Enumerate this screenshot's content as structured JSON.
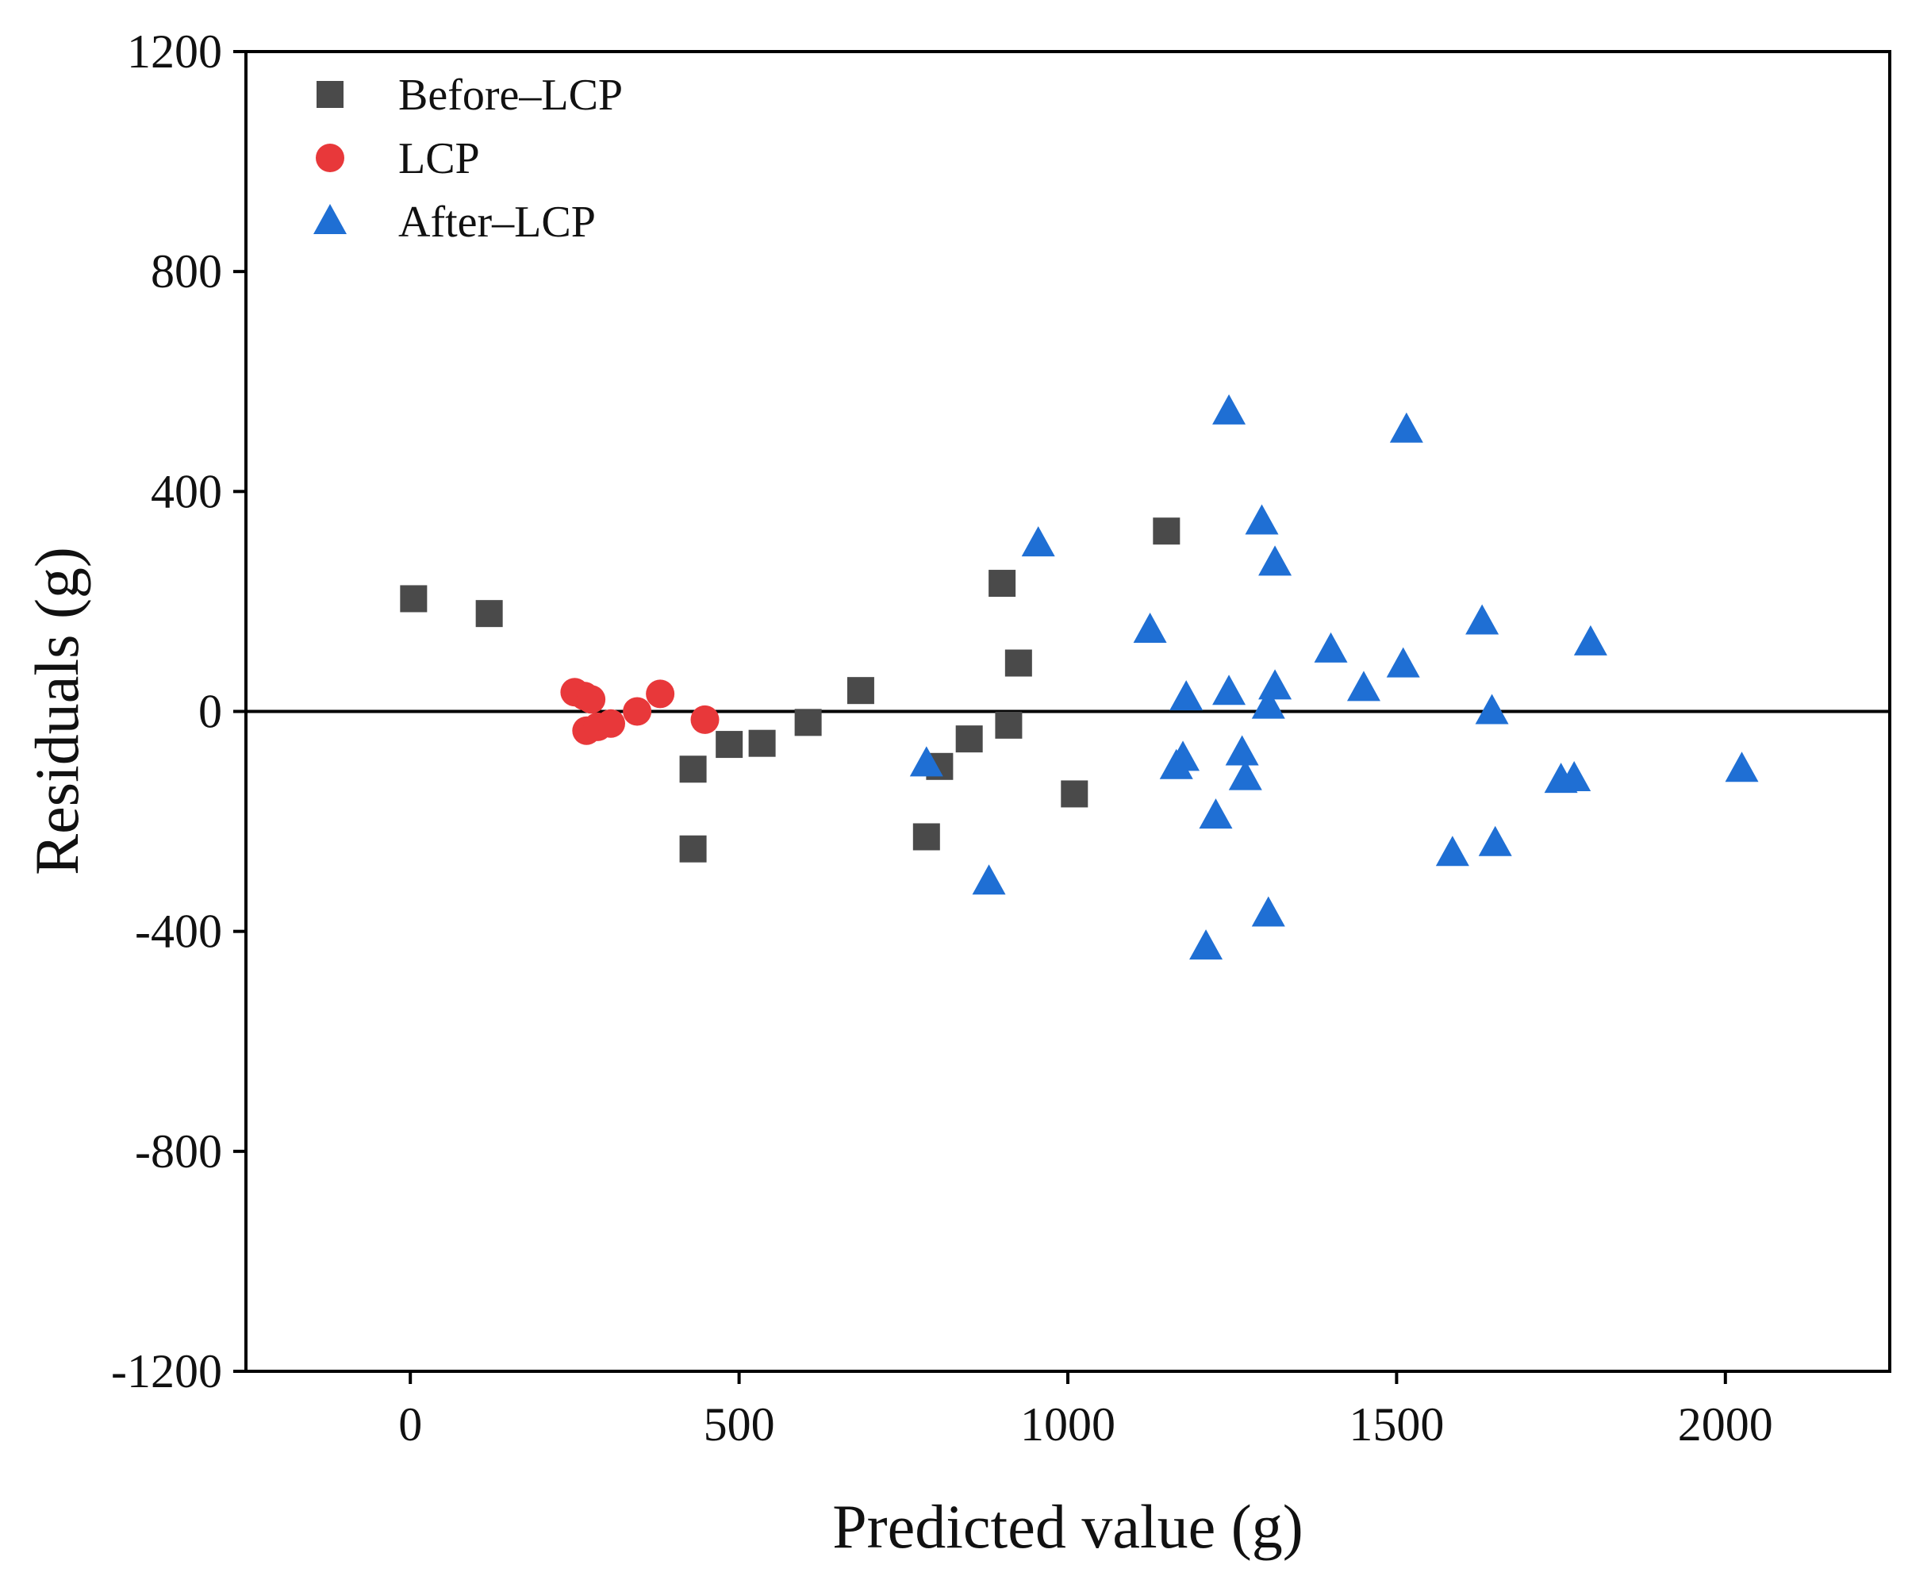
{
  "chart_data": {
    "type": "scatter",
    "title": "",
    "xlabel": "Predicted value (g)",
    "ylabel": "Residuals (g)",
    "xlim": [
      -250,
      2250
    ],
    "ylim": [
      -1200,
      1200
    ],
    "x_ticks": [
      0,
      500,
      1000,
      1500,
      2000
    ],
    "y_ticks": [
      1200,
      800,
      400,
      0,
      -400,
      -800,
      -1200
    ],
    "zero_line": 0,
    "grid": false,
    "legend_position": "top-left",
    "series": [
      {
        "name": "Before–LCP",
        "marker": "square",
        "color": "#4a4a4a",
        "points": [
          {
            "x": 5,
            "y": 205
          },
          {
            "x": 120,
            "y": 178
          },
          {
            "x": 430,
            "y": -105
          },
          {
            "x": 430,
            "y": -250
          },
          {
            "x": 485,
            "y": -60
          },
          {
            "x": 535,
            "y": -58
          },
          {
            "x": 605,
            "y": -20
          },
          {
            "x": 685,
            "y": 38
          },
          {
            "x": 785,
            "y": -228
          },
          {
            "x": 805,
            "y": -100
          },
          {
            "x": 850,
            "y": -50
          },
          {
            "x": 900,
            "y": 233
          },
          {
            "x": 910,
            "y": -25
          },
          {
            "x": 925,
            "y": 88
          },
          {
            "x": 1010,
            "y": -150
          },
          {
            "x": 1150,
            "y": 328
          }
        ]
      },
      {
        "name": "LCP",
        "marker": "circle",
        "color": "#e8383a",
        "points": [
          {
            "x": 250,
            "y": 35
          },
          {
            "x": 265,
            "y": 28
          },
          {
            "x": 275,
            "y": 22
          },
          {
            "x": 268,
            "y": -35
          },
          {
            "x": 285,
            "y": -28
          },
          {
            "x": 305,
            "y": -22
          },
          {
            "x": 345,
            "y": 0
          },
          {
            "x": 380,
            "y": 32
          },
          {
            "x": 448,
            "y": -15
          }
        ]
      },
      {
        "name": "After–LCP",
        "marker": "triangle",
        "color": "#1f6fd4",
        "points": [
          {
            "x": 785,
            "y": -95
          },
          {
            "x": 880,
            "y": -310
          },
          {
            "x": 955,
            "y": 305
          },
          {
            "x": 1125,
            "y": 148
          },
          {
            "x": 1165,
            "y": -100
          },
          {
            "x": 1180,
            "y": 25
          },
          {
            "x": 1175,
            "y": -85
          },
          {
            "x": 1210,
            "y": -428
          },
          {
            "x": 1225,
            "y": -190
          },
          {
            "x": 1245,
            "y": 545
          },
          {
            "x": 1245,
            "y": 35
          },
          {
            "x": 1265,
            "y": -75
          },
          {
            "x": 1270,
            "y": -120
          },
          {
            "x": 1295,
            "y": 345
          },
          {
            "x": 1305,
            "y": 10
          },
          {
            "x": 1305,
            "y": -368
          },
          {
            "x": 1315,
            "y": 270
          },
          {
            "x": 1315,
            "y": 45
          },
          {
            "x": 1400,
            "y": 112
          },
          {
            "x": 1450,
            "y": 42
          },
          {
            "x": 1510,
            "y": 85
          },
          {
            "x": 1515,
            "y": 512
          },
          {
            "x": 1585,
            "y": -258
          },
          {
            "x": 1630,
            "y": 163
          },
          {
            "x": 1645,
            "y": 0
          },
          {
            "x": 1650,
            "y": -240
          },
          {
            "x": 1750,
            "y": -125
          },
          {
            "x": 1770,
            "y": -122
          },
          {
            "x": 1795,
            "y": 125
          },
          {
            "x": 2025,
            "y": -105
          }
        ]
      }
    ]
  }
}
